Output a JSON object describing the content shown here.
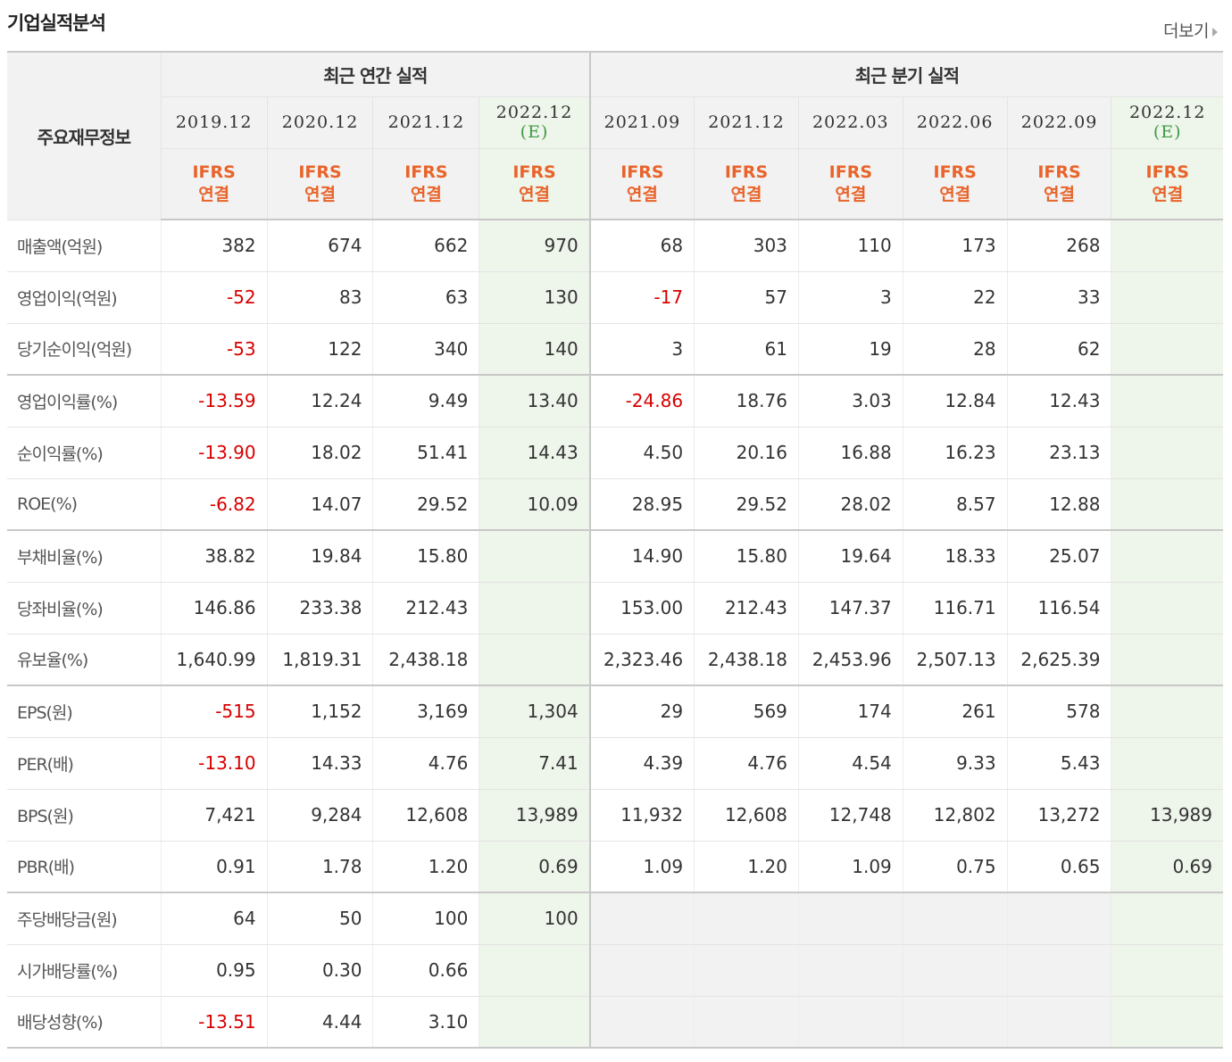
{
  "header": {
    "title": "기업실적분석",
    "more_label": "더보기"
  },
  "table": {
    "row_head": "주요재무정보",
    "group_annual": "최근 연간 실적",
    "group_quarter": "최근 분기 실적",
    "columns": [
      {
        "period": "2019.12",
        "est": "",
        "acc1": "IFRS",
        "acc2": "연결"
      },
      {
        "period": "2020.12",
        "est": "",
        "acc1": "IFRS",
        "acc2": "연결"
      },
      {
        "period": "2021.12",
        "est": "",
        "acc1": "IFRS",
        "acc2": "연결"
      },
      {
        "period": "2022.12",
        "est": "(E)",
        "acc1": "IFRS",
        "acc2": "연결"
      },
      {
        "period": "2021.09",
        "est": "",
        "acc1": "IFRS",
        "acc2": "연결"
      },
      {
        "period": "2021.12",
        "est": "",
        "acc1": "IFRS",
        "acc2": "연결"
      },
      {
        "period": "2022.03",
        "est": "",
        "acc1": "IFRS",
        "acc2": "연결"
      },
      {
        "period": "2022.06",
        "est": "",
        "acc1": "IFRS",
        "acc2": "연결"
      },
      {
        "period": "2022.09",
        "est": "",
        "acc1": "IFRS",
        "acc2": "연결"
      },
      {
        "period": "2022.12",
        "est": "(E)",
        "acc1": "IFRS",
        "acc2": "연결"
      }
    ],
    "rows": [
      {
        "label": "매출액(억원)",
        "values": [
          "382",
          "674",
          "662",
          "970",
          "68",
          "303",
          "110",
          "173",
          "268",
          ""
        ]
      },
      {
        "label": "영업이익(억원)",
        "values": [
          "-52",
          "83",
          "63",
          "130",
          "-17",
          "57",
          "3",
          "22",
          "33",
          ""
        ]
      },
      {
        "label": "당기순이익(억원)",
        "values": [
          "-53",
          "122",
          "340",
          "140",
          "3",
          "61",
          "19",
          "28",
          "62",
          ""
        ]
      },
      {
        "label": "영업이익률(%)",
        "values": [
          "-13.59",
          "12.24",
          "9.49",
          "13.40",
          "-24.86",
          "18.76",
          "3.03",
          "12.84",
          "12.43",
          ""
        ]
      },
      {
        "label": "순이익률(%)",
        "values": [
          "-13.90",
          "18.02",
          "51.41",
          "14.43",
          "4.50",
          "20.16",
          "16.88",
          "16.23",
          "23.13",
          ""
        ]
      },
      {
        "label": "ROE(%)",
        "values": [
          "-6.82",
          "14.07",
          "29.52",
          "10.09",
          "28.95",
          "29.52",
          "28.02",
          "8.57",
          "12.88",
          ""
        ]
      },
      {
        "label": "부채비율(%)",
        "values": [
          "38.82",
          "19.84",
          "15.80",
          "",
          "14.90",
          "15.80",
          "19.64",
          "18.33",
          "25.07",
          ""
        ]
      },
      {
        "label": "당좌비율(%)",
        "values": [
          "146.86",
          "233.38",
          "212.43",
          "",
          "153.00",
          "212.43",
          "147.37",
          "116.71",
          "116.54",
          ""
        ]
      },
      {
        "label": "유보율(%)",
        "values": [
          "1,640.99",
          "1,819.31",
          "2,438.18",
          "",
          "2,323.46",
          "2,438.18",
          "2,453.96",
          "2,507.13",
          "2,625.39",
          ""
        ]
      },
      {
        "label": "EPS(원)",
        "values": [
          "-515",
          "1,152",
          "3,169",
          "1,304",
          "29",
          "569",
          "174",
          "261",
          "578",
          ""
        ]
      },
      {
        "label": "PER(배)",
        "values": [
          "-13.10",
          "14.33",
          "4.76",
          "7.41",
          "4.39",
          "4.76",
          "4.54",
          "9.33",
          "5.43",
          ""
        ]
      },
      {
        "label": "BPS(원)",
        "values": [
          "7,421",
          "9,284",
          "12,608",
          "13,989",
          "11,932",
          "12,608",
          "12,748",
          "12,802",
          "13,272",
          "13,989"
        ]
      },
      {
        "label": "PBR(배)",
        "values": [
          "0.91",
          "1.78",
          "1.20",
          "0.69",
          "1.09",
          "1.20",
          "1.09",
          "0.75",
          "0.65",
          "0.69"
        ]
      },
      {
        "label": "주당배당금(원)",
        "values": [
          "64",
          "50",
          "100",
          "100",
          "",
          "",
          "",
          "",
          "",
          ""
        ]
      },
      {
        "label": "시가배당률(%)",
        "values": [
          "0.95",
          "0.30",
          "0.66",
          "",
          "",
          "",
          "",
          "",
          "",
          ""
        ]
      },
      {
        "label": "배당성향(%)",
        "values": [
          "-13.51",
          "4.44",
          "3.10",
          "",
          "",
          "",
          "",
          "",
          "",
          ""
        ]
      }
    ]
  },
  "colors": {
    "negative": "#d80000",
    "ifrs": "#e8642b",
    "estimate": "#3f9a45"
  }
}
